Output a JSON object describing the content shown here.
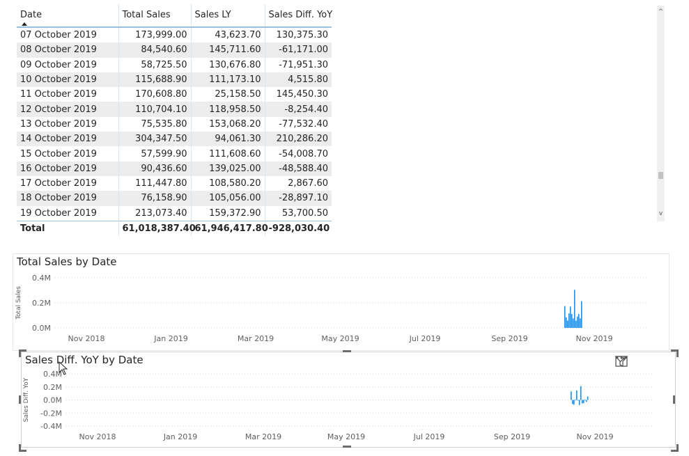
{
  "table": {
    "columns": [
      "Date",
      "Total Sales",
      "Sales LY",
      "Sales Diff. YoY"
    ],
    "rows": [
      [
        "07 October 2019",
        "173,999.00",
        "43,623.70",
        "130,375.30"
      ],
      [
        "08 October 2019",
        "84,540.60",
        "145,711.60",
        "-61,171.00"
      ],
      [
        "09 October 2019",
        "58,725.50",
        "130,676.80",
        "-71,951.30"
      ],
      [
        "10 October 2019",
        "115,688.90",
        "111,173.10",
        "4,515.80"
      ],
      [
        "11 October 2019",
        "170,608.80",
        "25,158.50",
        "145,450.30"
      ],
      [
        "12 October 2019",
        "110,704.10",
        "118,958.50",
        "-8,254.40"
      ],
      [
        "13 October 2019",
        "75,535.80",
        "153,068.20",
        "-77,532.40"
      ],
      [
        "14 October 2019",
        "304,347.50",
        "94,061.30",
        "210,286.20"
      ],
      [
        "15 October 2019",
        "57,599.90",
        "111,608.60",
        "-54,008.70"
      ],
      [
        "16 October 2019",
        "90,436.60",
        "139,025.00",
        "-48,588.40"
      ],
      [
        "17 October 2019",
        "111,447.80",
        "108,580.20",
        "2,867.60"
      ],
      [
        "18 October 2019",
        "76,158.90",
        "105,056.00",
        "-28,897.10"
      ],
      [
        "19 October 2019",
        "213,073.40",
        "159,372.90",
        "53,700.50"
      ]
    ],
    "total": [
      "Total",
      "61,018,387.40",
      "61,946,417.80",
      "-928,030.40"
    ],
    "sorted_column": "Date",
    "sort_direction": "ascending"
  },
  "scrollbar": {
    "up_icon": "chevron-up-icon",
    "down_icon": "chevron-down-icon",
    "up_glyph": "^",
    "down_glyph": "v"
  },
  "header_icons": [
    "filter-icon",
    "focus-mode-icon",
    "more-options-icon"
  ],
  "colors": {
    "bar": "#118dff",
    "band": "#ececec",
    "header_line": "#9ac0e0"
  },
  "chart_data": [
    {
      "type": "bar",
      "title": "Total Sales by Date",
      "xlabel": "",
      "ylabel": "Total Sales",
      "x_tick_labels": [
        "Nov 2018",
        "Jan 2019",
        "Mar 2019",
        "May 2019",
        "Jul 2019",
        "Sep 2019",
        "Nov 2019"
      ],
      "y_tick_labels": [
        "0.4M",
        "0.2M",
        "0.0M"
      ],
      "ylim": [
        0,
        400000
      ],
      "x_range": [
        "2018-10-07",
        "2019-12-05"
      ],
      "series": [
        {
          "values": [
            173999.0,
            84540.6,
            58725.5,
            115688.9,
            170608.8,
            110704.1,
            75535.8,
            304347.5,
            57599.9,
            90436.6,
            111447.8,
            76158.9,
            213073.4
          ]
        }
      ],
      "series_dates": [
        "2019-10-07",
        "2019-10-08",
        "2019-10-09",
        "2019-10-10",
        "2019-10-11",
        "2019-10-12",
        "2019-10-13",
        "2019-10-14",
        "2019-10-15",
        "2019-10-16",
        "2019-10-17",
        "2019-10-18",
        "2019-10-19"
      ],
      "grid": true
    },
    {
      "type": "bar",
      "title": "Sales Diff. YoY by Date",
      "xlabel": "",
      "ylabel": "Sales Diff. YoY",
      "x_tick_labels": [
        "Nov 2018",
        "Jan 2019",
        "Mar 2019",
        "May 2019",
        "Jul 2019",
        "Sep 2019",
        "Nov 2019"
      ],
      "y_tick_labels": [
        "0.4M",
        "0.2M",
        "0.0M",
        "-0.2M",
        "-0.4M"
      ],
      "ylim": [
        -400000,
        400000
      ],
      "x_range": [
        "2018-10-07",
        "2019-12-05"
      ],
      "series": [
        {
          "values": [
            130375.3,
            -61171.0,
            -71951.3,
            4515.8,
            145450.3,
            -8254.4,
            -77532.4,
            210286.2,
            -54008.7,
            -48588.4,
            2867.6,
            -28897.1,
            53700.5
          ]
        }
      ],
      "series_dates": [
        "2019-10-07",
        "2019-10-08",
        "2019-10-09",
        "2019-10-10",
        "2019-10-11",
        "2019-10-12",
        "2019-10-13",
        "2019-10-14",
        "2019-10-15",
        "2019-10-16",
        "2019-10-17",
        "2019-10-18",
        "2019-10-19"
      ],
      "grid": true
    }
  ]
}
